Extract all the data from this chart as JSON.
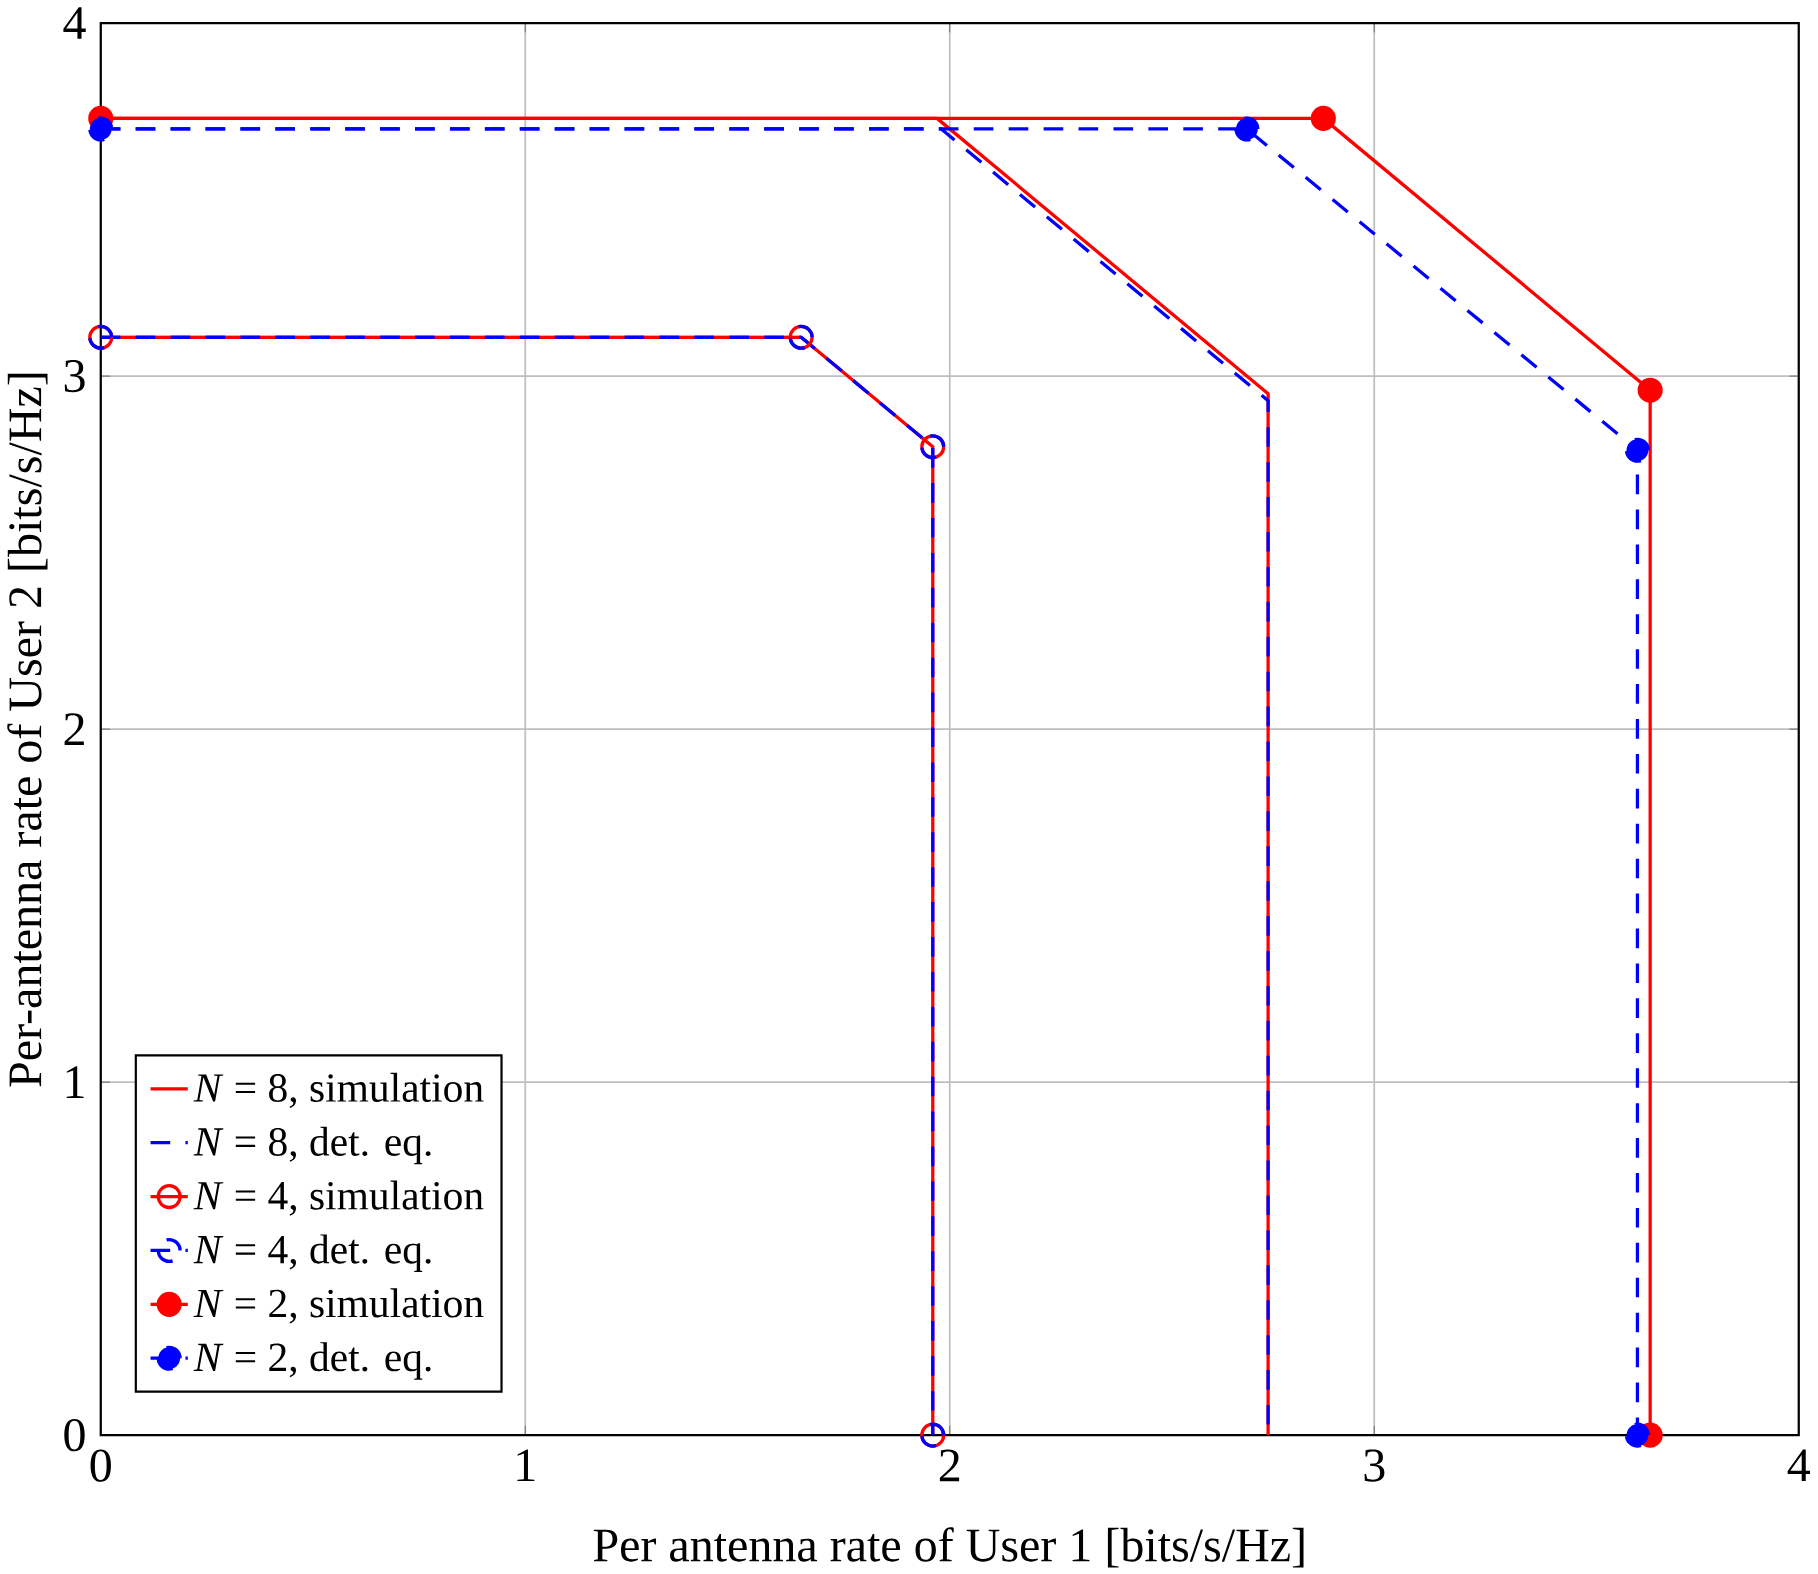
{
  "chart_data": {
    "type": "line",
    "xlabel": "Per antenna rate of User 1 [bits/s/Hz]",
    "ylabel": "Per-antenna rate of User 2 [bits/s/Hz]",
    "xlim": [
      0,
      4
    ],
    "ylim": [
      0,
      4
    ],
    "xticks": [
      0,
      1,
      2,
      3,
      4
    ],
    "yticks": [
      0,
      1,
      2,
      3,
      4
    ],
    "grid": true,
    "legend": "bottom left",
    "series": [
      {
        "name": "*N* = 8, simulation",
        "color": "#ff0000",
        "line_style": "solid",
        "marker": "none",
        "x": [
          0,
          1.97,
          2.75,
          2.75
        ],
        "values": [
          3.73,
          3.73,
          2.95,
          0
        ]
      },
      {
        "name": "*N* = 8, det. eq.",
        "color": "#0000ff",
        "line_style": "dashed",
        "marker": "none",
        "x": [
          0,
          1.98,
          2.75,
          2.75
        ],
        "values": [
          3.7,
          3.7,
          2.93,
          0
        ]
      },
      {
        "name": "*N* = 4, simulation",
        "color": "#ff0000",
        "line_style": "solid",
        "marker": "open circle",
        "x": [
          0,
          1.65,
          1.96,
          1.96
        ],
        "values": [
          3.11,
          3.11,
          2.8,
          0
        ]
      },
      {
        "name": "*N* = 4, det. eq.",
        "color": "#0000ff",
        "line_style": "dashed",
        "marker": "open circle",
        "x": [
          0,
          1.65,
          1.96,
          1.96
        ],
        "values": [
          3.11,
          3.11,
          2.8,
          0
        ]
      },
      {
        "name": "*N* = 2, simulation",
        "color": "#ff0000",
        "line_style": "solid",
        "marker": "circle",
        "x": [
          0,
          2.88,
          3.65,
          3.65
        ],
        "values": [
          3.73,
          3.73,
          2.96,
          0
        ]
      },
      {
        "name": "*N* = 2, det. eq.",
        "color": "#0000ff",
        "line_style": "dashed",
        "marker": "circle",
        "x": [
          0,
          2.7,
          3.62,
          3.62
        ],
        "values": [
          3.7,
          3.7,
          2.79,
          0
        ]
      }
    ]
  }
}
